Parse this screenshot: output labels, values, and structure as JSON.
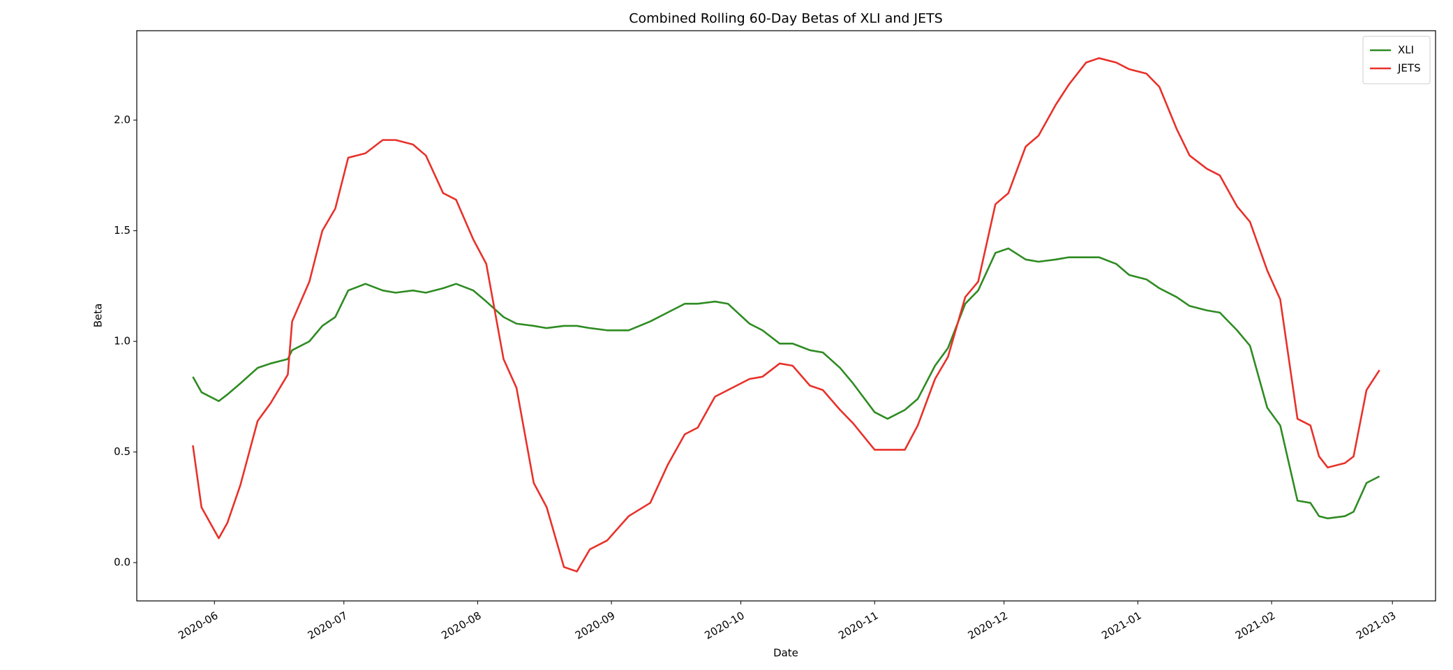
{
  "chart_data": {
    "type": "line",
    "title": "Combined Rolling 60-Day Betas of XLI and JETS",
    "x_label": "Date",
    "y_label": "Beta",
    "x": [
      "2020-05-27",
      "2020-05-29",
      "2020-06-02",
      "2020-06-04",
      "2020-06-07",
      "2020-06-11",
      "2020-06-14",
      "2020-06-18",
      "2020-06-19",
      "2020-06-23",
      "2020-06-26",
      "2020-06-29",
      "2020-07-02",
      "2020-07-06",
      "2020-07-10",
      "2020-07-13",
      "2020-07-17",
      "2020-07-20",
      "2020-07-24",
      "2020-07-27",
      "2020-07-31",
      "2020-08-03",
      "2020-08-07",
      "2020-08-10",
      "2020-08-14",
      "2020-08-17",
      "2020-08-21",
      "2020-08-24",
      "2020-08-27",
      "2020-08-31",
      "2020-09-05",
      "2020-09-10",
      "2020-09-14",
      "2020-09-18",
      "2020-09-21",
      "2020-09-25",
      "2020-09-28",
      "2020-10-03",
      "2020-10-06",
      "2020-10-10",
      "2020-10-13",
      "2020-10-17",
      "2020-10-20",
      "2020-10-24",
      "2020-10-27",
      "2020-11-01",
      "2020-11-04",
      "2020-11-08",
      "2020-11-11",
      "2020-11-15",
      "2020-11-18",
      "2020-11-22",
      "2020-11-25",
      "2020-11-29",
      "2020-12-02",
      "2020-12-06",
      "2020-12-09",
      "2020-12-13",
      "2020-12-16",
      "2020-12-20",
      "2020-12-23",
      "2020-12-27",
      "2020-12-30",
      "2021-01-03",
      "2021-01-06",
      "2021-01-10",
      "2021-01-13",
      "2021-01-17",
      "2021-01-20",
      "2021-01-24",
      "2021-01-27",
      "2021-01-31",
      "2021-02-03",
      "2021-02-07",
      "2021-02-10",
      "2021-02-12",
      "2021-02-14",
      "2021-02-18",
      "2021-02-20",
      "2021-02-23",
      "2021-02-26"
    ],
    "series": [
      {
        "name": "XLI",
        "color": "#2e8b22",
        "values": [
          0.84,
          0.77,
          0.73,
          0.76,
          0.81,
          0.88,
          0.9,
          0.92,
          0.96,
          1.0,
          1.07,
          1.11,
          1.23,
          1.26,
          1.23,
          1.22,
          1.23,
          1.22,
          1.24,
          1.26,
          1.23,
          1.18,
          1.11,
          1.08,
          1.07,
          1.06,
          1.07,
          1.07,
          1.06,
          1.05,
          1.05,
          1.09,
          1.13,
          1.17,
          1.17,
          1.18,
          1.17,
          1.08,
          1.05,
          0.99,
          0.99,
          0.96,
          0.95,
          0.88,
          0.81,
          0.68,
          0.65,
          0.69,
          0.74,
          0.89,
          0.97,
          1.17,
          1.23,
          1.4,
          1.42,
          1.37,
          1.36,
          1.37,
          1.38,
          1.38,
          1.38,
          1.35,
          1.3,
          1.28,
          1.24,
          1.2,
          1.16,
          1.14,
          1.13,
          1.05,
          0.98,
          0.7,
          0.62,
          0.28,
          0.27,
          0.21,
          0.2,
          0.21,
          0.23,
          0.36,
          0.39
        ]
      },
      {
        "name": "JETS",
        "color": "#e8312a",
        "values": [
          0.53,
          0.25,
          0.11,
          0.18,
          0.35,
          0.64,
          0.72,
          0.85,
          1.09,
          1.27,
          1.5,
          1.6,
          1.83,
          1.85,
          1.91,
          1.91,
          1.89,
          1.84,
          1.67,
          1.64,
          1.46,
          1.35,
          0.92,
          0.79,
          0.36,
          0.25,
          -0.02,
          -0.04,
          0.06,
          0.1,
          0.21,
          0.27,
          0.44,
          0.58,
          0.61,
          0.75,
          0.78,
          0.83,
          0.84,
          0.9,
          0.89,
          0.8,
          0.78,
          0.69,
          0.63,
          0.51,
          0.51,
          0.51,
          0.62,
          0.83,
          0.93,
          1.2,
          1.27,
          1.62,
          1.67,
          1.88,
          1.93,
          2.07,
          2.16,
          2.26,
          2.28,
          2.26,
          2.23,
          2.21,
          2.15,
          1.96,
          1.84,
          1.78,
          1.75,
          1.61,
          1.54,
          1.32,
          1.19,
          0.65,
          0.62,
          0.48,
          0.43,
          0.45,
          0.48,
          0.78,
          0.87
        ]
      }
    ],
    "xlim": [
      "2020-05-14",
      "2021-03-11"
    ],
    "xticks": [
      {
        "value": "2020-06-01",
        "label": "2020-06"
      },
      {
        "value": "2020-07-01",
        "label": "2020-07"
      },
      {
        "value": "2020-08-01",
        "label": "2020-08"
      },
      {
        "value": "2020-09-01",
        "label": "2020-09"
      },
      {
        "value": "2020-10-01",
        "label": "2020-10"
      },
      {
        "value": "2020-11-01",
        "label": "2020-11"
      },
      {
        "value": "2020-12-01",
        "label": "2020-12"
      },
      {
        "value": "2021-01-01",
        "label": "2021-01"
      },
      {
        "value": "2021-02-01",
        "label": "2021-02"
      },
      {
        "value": "2021-03-01",
        "label": "2021-03"
      }
    ],
    "ylim": [
      -0.173,
      2.404
    ],
    "yticks": [
      {
        "value": 0,
        "label": "0.0"
      },
      {
        "value": 0.5,
        "label": "0.5"
      },
      {
        "value": 1,
        "label": "1.0"
      },
      {
        "value": 1.5,
        "label": "1.5"
      },
      {
        "value": 2,
        "label": "2.0"
      }
    ],
    "legend": "upper right",
    "grid": false
  }
}
